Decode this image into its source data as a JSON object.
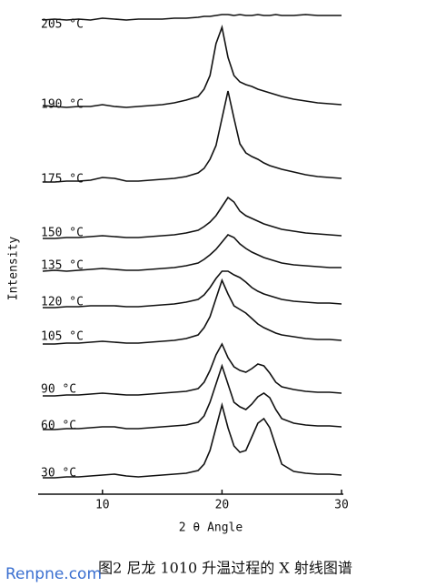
{
  "chart_data": {
    "type": "line",
    "x_label": "2 θ Angle",
    "y_label": "Intensity",
    "caption": "图2 尼龙 1010 升温过程的 X 射线图谱",
    "x": [
      5,
      6,
      7,
      8,
      9,
      10,
      11,
      12,
      13,
      14,
      15,
      16,
      17,
      18,
      18.5,
      19,
      19.5,
      20,
      20.5,
      21,
      21.5,
      22,
      22.5,
      23,
      23.5,
      24,
      24.5,
      25,
      26,
      27,
      28,
      29,
      30
    ],
    "xlim": [
      5,
      30
    ],
    "xticks": [
      10,
      20,
      30
    ],
    "series": [
      {
        "name": "205 °C",
        "color": "#111111",
        "values": [
          0,
          1,
          0,
          1,
          0,
          2,
          1,
          0,
          1,
          1,
          1,
          2,
          2,
          3,
          4,
          4,
          5,
          6,
          6,
          5,
          6,
          5,
          5,
          6,
          5,
          5,
          6,
          5,
          5,
          6,
          5,
          5,
          5
        ]
      },
      {
        "name": "190 °C",
        "color": "#111111",
        "values": [
          2,
          1,
          0,
          1,
          1,
          3,
          1,
          0,
          1,
          2,
          3,
          5,
          8,
          12,
          20,
          35,
          70,
          88,
          55,
          35,
          28,
          25,
          23,
          20,
          18,
          16,
          14,
          12,
          9,
          7,
          5,
          4,
          3
        ]
      },
      {
        "name": "175 °C",
        "color": "#111111",
        "values": [
          0,
          0,
          1,
          1,
          2,
          5,
          4,
          1,
          1,
          2,
          3,
          4,
          6,
          10,
          15,
          25,
          40,
          70,
          100,
          70,
          42,
          32,
          28,
          25,
          21,
          18,
          16,
          14,
          11,
          8,
          6,
          5,
          4
        ]
      },
      {
        "name": "150 °C",
        "color": "#111111",
        "values": [
          0,
          0,
          1,
          1,
          2,
          3,
          2,
          1,
          1,
          2,
          3,
          4,
          6,
          9,
          13,
          18,
          25,
          35,
          45,
          40,
          30,
          25,
          22,
          19,
          16,
          14,
          12,
          10,
          8,
          6,
          5,
          4,
          3
        ]
      },
      {
        "name": "135 °C",
        "color": "#111111",
        "values": [
          0,
          1,
          0,
          1,
          2,
          3,
          2,
          1,
          1,
          2,
          3,
          4,
          6,
          9,
          13,
          18,
          24,
          32,
          40,
          37,
          30,
          25,
          21,
          18,
          15,
          13,
          11,
          9,
          7,
          6,
          5,
          4,
          4
        ]
      },
      {
        "name": "120 °C",
        "color": "#111111",
        "values": [
          0,
          0,
          1,
          1,
          2,
          2,
          2,
          1,
          1,
          2,
          3,
          4,
          6,
          9,
          14,
          22,
          32,
          40,
          40,
          36,
          33,
          28,
          22,
          18,
          15,
          13,
          11,
          9,
          7,
          6,
          5,
          5,
          4
        ]
      },
      {
        "name": "105 °C",
        "color": "#111111",
        "values": [
          0,
          0,
          1,
          1,
          2,
          3,
          2,
          1,
          1,
          2,
          3,
          4,
          6,
          10,
          18,
          30,
          50,
          70,
          55,
          42,
          38,
          34,
          28,
          22,
          18,
          15,
          12,
          10,
          8,
          6,
          5,
          5,
          4
        ]
      },
      {
        "name": "90 °C",
        "color": "#111111",
        "values": [
          0,
          0,
          1,
          1,
          2,
          3,
          2,
          1,
          1,
          2,
          3,
          4,
          5,
          8,
          15,
          28,
          45,
          57,
          42,
          32,
          28,
          26,
          30,
          35,
          33,
          25,
          15,
          10,
          7,
          5,
          4,
          4,
          3
        ]
      },
      {
        "name": "60 °C",
        "color": "#111111",
        "values": [
          0,
          0,
          1,
          1,
          2,
          3,
          3,
          1,
          1,
          2,
          3,
          4,
          5,
          8,
          15,
          30,
          50,
          70,
          50,
          30,
          25,
          22,
          28,
          36,
          40,
          35,
          22,
          12,
          7,
          5,
          4,
          4,
          3
        ]
      },
      {
        "name": "30 °C",
        "color": "#111111",
        "values": [
          0,
          0,
          1,
          1,
          2,
          3,
          4,
          2,
          1,
          2,
          3,
          4,
          5,
          8,
          15,
          30,
          55,
          80,
          55,
          35,
          28,
          30,
          45,
          60,
          65,
          55,
          35,
          15,
          7,
          5,
          4,
          4,
          3
        ]
      }
    ]
  },
  "watermark": "Renpne.com"
}
